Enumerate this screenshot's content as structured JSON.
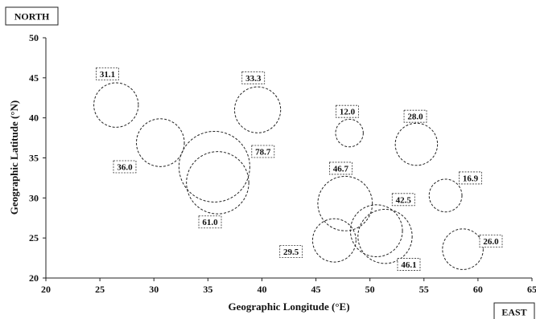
{
  "chart_data": {
    "type": "bubble",
    "xlabel": "Geographic Longitude (°E)",
    "ylabel": "Geographic Latitude (°N)",
    "xlim": [
      20,
      65
    ],
    "ylim": [
      20,
      50
    ],
    "x_ticks": [
      "20",
      "25",
      "30",
      "35",
      "40",
      "45",
      "50",
      "55",
      "60",
      "65"
    ],
    "y_ticks": [
      "20",
      "25",
      "30",
      "35",
      "40",
      "45",
      "50"
    ],
    "grid": false,
    "corner_labels": {
      "north": "NORTH",
      "east": "EAST"
    },
    "bubbles": [
      {
        "x": 26.5,
        "y": 41.6,
        "value": 31.1,
        "label": "31.1",
        "label_x": 25.7,
        "label_y": 45.5
      },
      {
        "x": 30.6,
        "y": 36.9,
        "value": 36.0,
        "label": "36.0",
        "label_x": 27.3,
        "label_y": 33.9
      },
      {
        "x": 35.6,
        "y": 33.9,
        "value": 78.7,
        "label": "78.7",
        "label_x": 40.1,
        "label_y": 35.8
      },
      {
        "x": 35.9,
        "y": 31.9,
        "value": 61.0,
        "label": "61.0",
        "label_x": 35.2,
        "label_y": 27.0
      },
      {
        "x": 39.6,
        "y": 41.0,
        "value": 33.3,
        "label": "33.3",
        "label_x": 39.2,
        "label_y": 45.0
      },
      {
        "x": 48.1,
        "y": 38.1,
        "value": 12.0,
        "label": "12.0",
        "label_x": 47.9,
        "label_y": 40.8
      },
      {
        "x": 54.3,
        "y": 36.7,
        "value": 28.0,
        "label": "28.0",
        "label_x": 54.2,
        "label_y": 40.2
      },
      {
        "x": 47.7,
        "y": 29.3,
        "value": 46.7,
        "label": "46.7",
        "label_x": 47.3,
        "label_y": 33.7
      },
      {
        "x": 57.0,
        "y": 30.3,
        "value": 16.9,
        "label": "16.9",
        "label_x": 59.3,
        "label_y": 32.5
      },
      {
        "x": 50.6,
        "y": 25.9,
        "value": 42.5,
        "label": "42.5",
        "label_x": 53.1,
        "label_y": 29.8
      },
      {
        "x": 46.7,
        "y": 24.7,
        "value": 29.5,
        "label": "29.5",
        "label_x": 42.7,
        "label_y": 23.3
      },
      {
        "x": 51.4,
        "y": 25.2,
        "value": 46.1,
        "label": "46.1",
        "label_x": 53.6,
        "label_y": 21.7
      },
      {
        "x": 58.6,
        "y": 23.6,
        "value": 26.0,
        "label": "26.0",
        "label_x": 61.2,
        "label_y": 24.6
      }
    ]
  }
}
